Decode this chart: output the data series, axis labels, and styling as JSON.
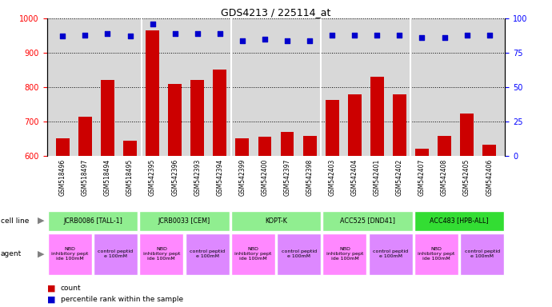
{
  "title": "GDS4213 / 225114_at",
  "samples": [
    "GSM518496",
    "GSM518497",
    "GSM518494",
    "GSM518495",
    "GSM542395",
    "GSM542396",
    "GSM542393",
    "GSM542394",
    "GSM542399",
    "GSM542400",
    "GSM542397",
    "GSM542398",
    "GSM542403",
    "GSM542404",
    "GSM542401",
    "GSM542402",
    "GSM542407",
    "GSM542408",
    "GSM542405",
    "GSM542406"
  ],
  "counts": [
    651,
    713,
    820,
    645,
    966,
    810,
    822,
    851,
    651,
    655,
    669,
    659,
    762,
    780,
    830,
    779,
    622,
    658,
    724,
    633
  ],
  "percentiles": [
    87,
    88,
    89,
    87,
    96,
    89,
    89,
    89,
    84,
    85,
    84,
    84,
    88,
    88,
    88,
    88,
    86,
    86,
    88,
    88
  ],
  "cell_lines": [
    {
      "label": "JCRB0086 [TALL-1]",
      "start": 0,
      "end": 4,
      "color": "#90EE90"
    },
    {
      "label": "JCRB0033 [CEM]",
      "start": 4,
      "end": 8,
      "color": "#90EE90"
    },
    {
      "label": "KOPT-K",
      "start": 8,
      "end": 12,
      "color": "#90EE90"
    },
    {
      "label": "ACC525 [DND41]",
      "start": 12,
      "end": 16,
      "color": "#90EE90"
    },
    {
      "label": "ACC483 [HPB-ALL]",
      "start": 16,
      "end": 20,
      "color": "#33DD33"
    }
  ],
  "agents": [
    {
      "label": "NBD\ninhibitory pept\nide 100mM",
      "start": 0,
      "end": 2,
      "color": "#FF88FF"
    },
    {
      "label": "control peptid\ne 100mM",
      "start": 2,
      "end": 4,
      "color": "#DD88FF"
    },
    {
      "label": "NBD\ninhibitory pept\nide 100mM",
      "start": 4,
      "end": 6,
      "color": "#FF88FF"
    },
    {
      "label": "control peptid\ne 100mM",
      "start": 6,
      "end": 8,
      "color": "#DD88FF"
    },
    {
      "label": "NBD\ninhibitory pept\nide 100mM",
      "start": 8,
      "end": 10,
      "color": "#FF88FF"
    },
    {
      "label": "control peptid\ne 100mM",
      "start": 10,
      "end": 12,
      "color": "#DD88FF"
    },
    {
      "label": "NBD\ninhibitory pept\nide 100mM",
      "start": 12,
      "end": 14,
      "color": "#FF88FF"
    },
    {
      "label": "control peptid\ne 100mM",
      "start": 14,
      "end": 16,
      "color": "#DD88FF"
    },
    {
      "label": "NBD\ninhibitory pept\nide 100mM",
      "start": 16,
      "end": 18,
      "color": "#FF88FF"
    },
    {
      "label": "control peptid\ne 100mM",
      "start": 18,
      "end": 20,
      "color": "#DD88FF"
    }
  ],
  "ylim_left": [
    600,
    1000
  ],
  "ylim_right": [
    0,
    100
  ],
  "yticks_left": [
    600,
    700,
    800,
    900,
    1000
  ],
  "yticks_right": [
    0,
    25,
    50,
    75,
    100
  ],
  "bar_color": "#CC0000",
  "dot_color": "#0000CC",
  "bar_width": 0.6,
  "background_color": "#FFFFFF",
  "plot_bg_color": "#D8D8D8",
  "xtick_bg_color": "#C8C8C8",
  "legend_count_color": "#CC0000",
  "legend_pct_color": "#0000CC"
}
